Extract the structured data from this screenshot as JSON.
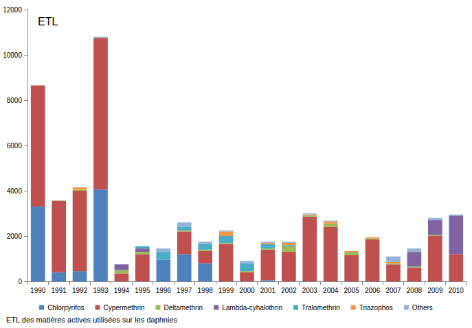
{
  "chart_data": {
    "type": "bar",
    "title": "ETL",
    "caption": "ETL des matières actives utilisées sur les daphnies",
    "stacked": true,
    "grid": false,
    "legend": "bottom",
    "categories": [
      "1990",
      "1991",
      "1992",
      "1993",
      "1994",
      "1995",
      "1996",
      "1997",
      "1998",
      "1999",
      "2000",
      "2001",
      "2002",
      "2003",
      "2004",
      "2005",
      "2006",
      "2007",
      "2008",
      "2009",
      "2010"
    ],
    "ylim": [
      0,
      12000
    ],
    "yticks": [
      0,
      2000,
      4000,
      6000,
      8000,
      10000,
      12000
    ],
    "series": [
      {
        "name": "Chlorpyrifos",
        "color": "#4f81bd",
        "values": [
          3300,
          400,
          450,
          4050,
          0,
          0,
          950,
          1200,
          800,
          0,
          0,
          50,
          0,
          0,
          0,
          0,
          0,
          0,
          0,
          0,
          0
        ]
      },
      {
        "name": "Cypermethrin",
        "color": "#c0504d",
        "values": [
          5350,
          3150,
          3550,
          6700,
          350,
          1200,
          0,
          1000,
          550,
          1650,
          400,
          1350,
          1300,
          2850,
          2400,
          1150,
          1850,
          750,
          600,
          2000,
          1200
        ]
      },
      {
        "name": "Deltamethrin",
        "color": "#9bbb59",
        "values": [
          0,
          20,
          50,
          0,
          150,
          100,
          0,
          50,
          50,
          50,
          50,
          50,
          250,
          50,
          150,
          150,
          50,
          50,
          50,
          50,
          0
        ]
      },
      {
        "name": "Lambda-cyhalothrin",
        "color": "#8064a2",
        "values": [
          0,
          0,
          0,
          0,
          250,
          150,
          0,
          0,
          0,
          0,
          0,
          0,
          0,
          0,
          0,
          0,
          0,
          0,
          650,
          650,
          1700
        ]
      },
      {
        "name": "Tralomethrin",
        "color": "#4bacc6",
        "values": [
          0,
          0,
          0,
          0,
          0,
          100,
          350,
          150,
          250,
          300,
          350,
          200,
          50,
          0,
          0,
          0,
          0,
          0,
          0,
          0,
          0
        ]
      },
      {
        "name": "Triazophos",
        "color": "#f79646",
        "values": [
          0,
          0,
          100,
          0,
          0,
          0,
          0,
          0,
          0,
          200,
          0,
          50,
          100,
          50,
          100,
          30,
          50,
          50,
          0,
          0,
          0
        ]
      },
      {
        "name": "Others",
        "color": "#95b3d7",
        "values": [
          0,
          0,
          0,
          50,
          0,
          0,
          150,
          200,
          100,
          50,
          100,
          50,
          50,
          50,
          30,
          0,
          0,
          250,
          150,
          100,
          50
        ]
      }
    ]
  }
}
